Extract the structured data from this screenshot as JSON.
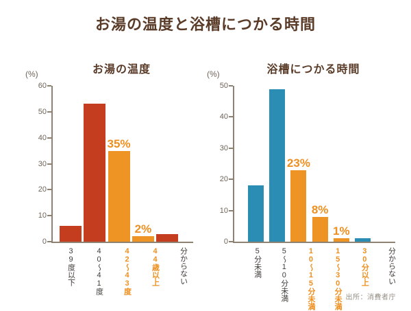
{
  "title": "お湯の温度と浴槽につかる時間",
  "source": "出所：消費者庁",
  "colors": {
    "red": "#c43d1e",
    "orange": "#ee9425",
    "blue": "#2b8cb4",
    "accent_label": "#ee8f1f",
    "title_brown": "#5a3b28",
    "axis": "#8c8172",
    "tick_text": "#6e6358",
    "category_text": "#403c38",
    "source_text": "#979087"
  },
  "chart_data": [
    {
      "type": "bar",
      "title": "お湯の温度",
      "ylabel": "(%)",
      "ylim": [
        0,
        60
      ],
      "ytick_step": 10,
      "grid": false,
      "legend": "none",
      "categories": [
        "39度以下",
        "40〜41度",
        "42〜43度",
        "44歳以上",
        "分からない"
      ],
      "values": [
        6,
        53,
        35,
        2,
        3
      ],
      "bar_colors": [
        "red",
        "red",
        "orange",
        "orange",
        "red"
      ],
      "category_highlight": [
        false,
        false,
        true,
        true,
        false
      ],
      "data_labels": [
        "",
        "",
        "35%",
        "2%",
        ""
      ]
    },
    {
      "type": "bar",
      "title": "浴槽につかる時間",
      "ylabel": "(%)",
      "ylim": [
        0,
        50
      ],
      "ytick_step": 10,
      "grid": false,
      "legend": "none",
      "categories": [
        "5分未満",
        "5〜10分未満",
        "10〜15分未満",
        "15〜30分未満",
        "30分以上",
        "分からない"
      ],
      "values": [
        18,
        49,
        23,
        8,
        1,
        1
      ],
      "bar_colors": [
        "blue",
        "blue",
        "orange",
        "orange",
        "orange",
        "blue"
      ],
      "category_highlight": [
        false,
        false,
        true,
        true,
        true,
        false
      ],
      "data_labels": [
        "",
        "",
        "23%",
        "8%",
        "1%",
        ""
      ]
    }
  ]
}
